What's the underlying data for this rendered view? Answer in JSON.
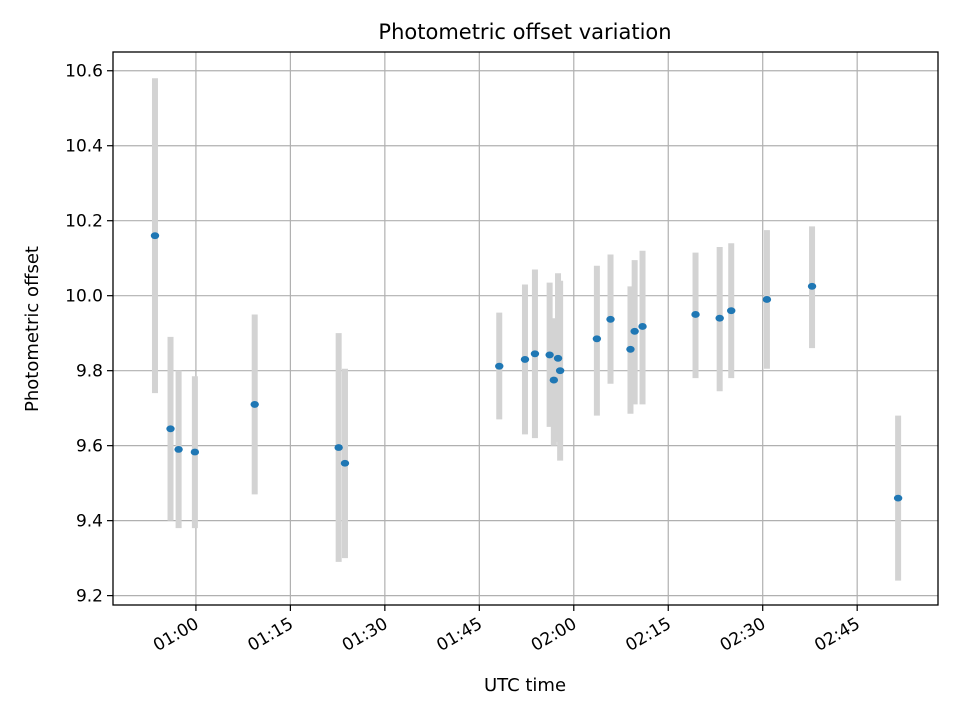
{
  "chart_data": {
    "type": "scatter",
    "title": "Photometric offset variation",
    "xlabel": "UTC time",
    "ylabel": "Photometric offset",
    "x_ticks": [
      "01:00",
      "01:15",
      "01:30",
      "01:45",
      "02:00",
      "02:15",
      "02:30",
      "02:45"
    ],
    "y_ticks": [
      "9.2",
      "9.4",
      "9.6",
      "9.8",
      "10.0",
      "10.2",
      "10.4",
      "10.6"
    ],
    "xlim": [
      "00:46:50",
      "02:57:50"
    ],
    "ylim": [
      9.175,
      10.65
    ],
    "grid": true,
    "colors": {
      "point": "#1f77b4",
      "errorbar": "#d3d3d3",
      "grid": "#b0b0b0"
    },
    "points": [
      {
        "time": "00:53:30",
        "value": 10.16,
        "low": 9.74,
        "high": 10.58
      },
      {
        "time": "00:55:58",
        "value": 9.645,
        "low": 9.4,
        "high": 9.89
      },
      {
        "time": "00:57:15",
        "value": 9.59,
        "low": 9.38,
        "high": 9.8
      },
      {
        "time": "00:59:50",
        "value": 9.583,
        "low": 9.38,
        "high": 9.785
      },
      {
        "time": "01:09:20",
        "value": 9.71,
        "low": 9.47,
        "high": 9.95
      },
      {
        "time": "01:22:40",
        "value": 9.595,
        "low": 9.29,
        "high": 9.9
      },
      {
        "time": "01:23:40",
        "value": 9.553,
        "low": 9.3,
        "high": 9.805
      },
      {
        "time": "01:48:10",
        "value": 9.812,
        "low": 9.67,
        "high": 9.955
      },
      {
        "time": "01:52:15",
        "value": 9.83,
        "low": 9.63,
        "high": 10.03
      },
      {
        "time": "01:53:50",
        "value": 9.845,
        "low": 9.62,
        "high": 10.07
      },
      {
        "time": "01:56:10",
        "value": 9.842,
        "low": 9.65,
        "high": 10.035
      },
      {
        "time": "01:56:50",
        "value": 9.775,
        "low": 9.6,
        "high": 9.94
      },
      {
        "time": "01:57:30",
        "value": 9.833,
        "low": 9.61,
        "high": 10.06
      },
      {
        "time": "01:57:50",
        "value": 9.8,
        "low": 9.56,
        "high": 10.04
      },
      {
        "time": "02:03:40",
        "value": 9.885,
        "low": 9.68,
        "high": 10.08
      },
      {
        "time": "02:05:50",
        "value": 9.937,
        "low": 9.765,
        "high": 10.11
      },
      {
        "time": "02:09:00",
        "value": 9.857,
        "low": 9.685,
        "high": 10.025
      },
      {
        "time": "02:09:40",
        "value": 9.905,
        "low": 9.71,
        "high": 10.095
      },
      {
        "time": "02:10:55",
        "value": 9.918,
        "low": 9.71,
        "high": 10.12
      },
      {
        "time": "02:19:20",
        "value": 9.95,
        "low": 9.78,
        "high": 10.115
      },
      {
        "time": "02:23:10",
        "value": 9.94,
        "low": 9.745,
        "high": 10.13
      },
      {
        "time": "02:25:00",
        "value": 9.96,
        "low": 9.78,
        "high": 10.14
      },
      {
        "time": "02:30:40",
        "value": 9.99,
        "low": 9.805,
        "high": 10.175
      },
      {
        "time": "02:37:50",
        "value": 10.025,
        "low": 9.86,
        "high": 10.185
      },
      {
        "time": "02:51:30",
        "value": 9.46,
        "low": 9.24,
        "high": 9.68
      }
    ]
  }
}
